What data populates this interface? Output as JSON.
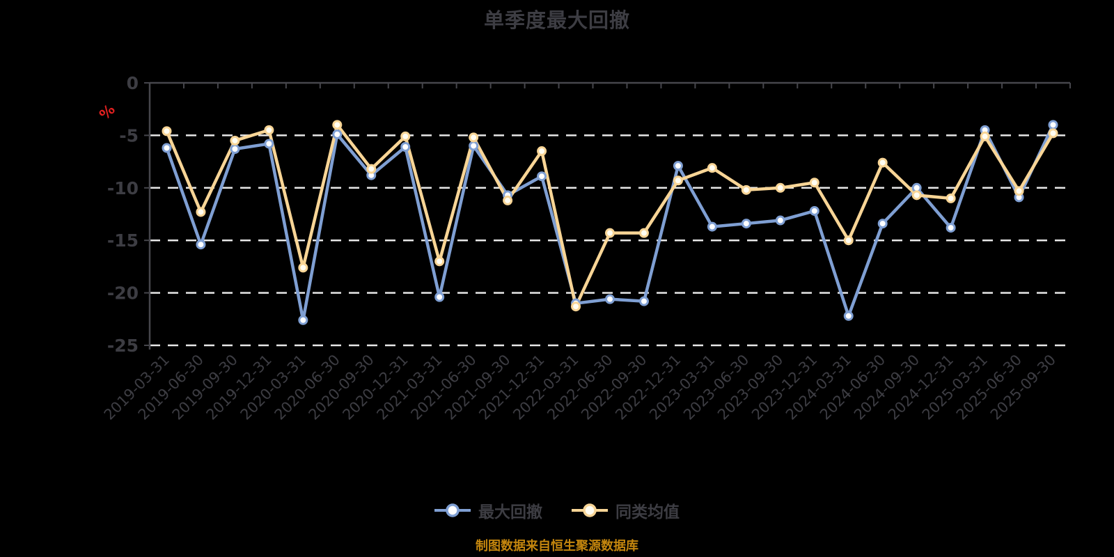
{
  "title": "单季度最大回撤",
  "source_note": "制图数据来自恒生聚源数据库",
  "colors": {
    "background": "#000000",
    "label": "#3d3d43",
    "axis": "#46464c",
    "grid": "#e8e8e8",
    "unit_label": "#e02020",
    "source_note": "#c4860e",
    "series_max_drawdown": "#7f9fd3",
    "series_category_avg": "#f8d596",
    "marker_fill_blue": "#ffffff",
    "marker_fill_yellow": "#fffdf2"
  },
  "y_axis": {
    "unit": "%",
    "ticks": [
      "0",
      "-5",
      "-10",
      "-15",
      "-20",
      "-25"
    ],
    "tick_values": [
      0,
      -5,
      -10,
      -15,
      -20,
      -25
    ],
    "min": -25,
    "max": 0
  },
  "legend": [
    {
      "id": "max-drawdown",
      "label": "最大回撤",
      "color": "#7f9fd3",
      "marker_fill": "#ffffff"
    },
    {
      "id": "category-average",
      "label": "同类均值",
      "color": "#f8d596",
      "marker_fill": "#fffdf2"
    }
  ],
  "chart_data": {
    "type": "line",
    "title": "单季度最大回撤",
    "ylabel": "%",
    "ylim": [
      -25,
      0
    ],
    "grid": "horizontal dashed",
    "legend_position": "bottom",
    "categories": [
      "2019-03-31",
      "2019-06-30",
      "2019-09-30",
      "2019-12-31",
      "2020-03-31",
      "2020-06-30",
      "2020-09-30",
      "2020-12-31",
      "2021-03-31",
      "2021-06-30",
      "2021-09-30",
      "2021-12-31",
      "2022-03-31",
      "2022-06-30",
      "2022-09-30",
      "2022-12-31",
      "2023-03-31",
      "2023-06-30",
      "2023-09-30",
      "2023-12-31",
      "2024-03-31",
      "2024-06-30",
      "2024-09-30",
      "2024-12-31",
      "2025-03-31",
      "2025-06-30",
      "2025-09-30"
    ],
    "series": [
      {
        "id": "max-drawdown",
        "name": "最大回撤",
        "color": "#7f9fd3",
        "marker_fill": "#ffffff",
        "values": [
          -6.2,
          -15.4,
          -6.3,
          -5.8,
          -22.6,
          -4.9,
          -8.8,
          -6.1,
          -20.4,
          -6.0,
          -10.7,
          -8.9,
          -21.0,
          -20.6,
          -20.8,
          -7.9,
          -13.7,
          -13.4,
          -13.1,
          -12.2,
          -22.2,
          -13.4,
          -10.0,
          -13.8,
          -4.5,
          -10.9,
          -4.0
        ]
      },
      {
        "id": "category-average",
        "name": "同类均值",
        "color": "#f8d596",
        "marker_fill": "#fffdf2",
        "values": [
          -4.6,
          -12.3,
          -5.5,
          -4.5,
          -17.6,
          -4.0,
          -8.2,
          -5.1,
          -17.0,
          -5.2,
          -11.2,
          -6.5,
          -21.3,
          -14.3,
          -14.3,
          -9.3,
          -8.1,
          -10.2,
          -10.0,
          -9.5,
          -15.0,
          -7.6,
          -10.7,
          -11.0,
          -5.1,
          -10.3,
          -4.8
        ]
      }
    ]
  }
}
